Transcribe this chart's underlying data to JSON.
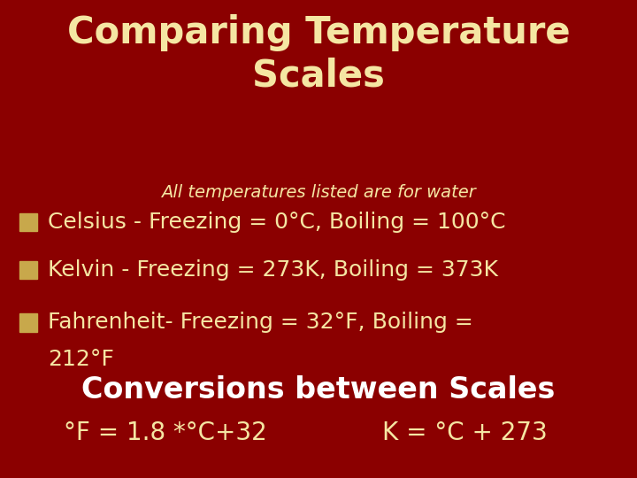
{
  "title_line1": "Comparing Temperature",
  "title_line2": "Scales",
  "subtitle": "All temperatures listed are for water",
  "bullet1": "Celsius - Freezing = 0°C, Boiling = 100°C",
  "bullet2": "Kelvin - Freezing = 273K, Boiling = 373K",
  "bullet3_line1": "Fahrenheit- Freezing = 32°F, Boiling =",
  "bullet3_line2": "212°F",
  "conversion_title": "Conversions between Scales",
  "conversion1": "°F = 1.8 *°C+32",
  "conversion2": "K = °C + 273",
  "bg_color": "#8B0000",
  "title_color": "#F5E6A3",
  "subtitle_color": "#F5E6A3",
  "bullet_color": "#F5E6A3",
  "bullet_square_color": "#C8A84B",
  "conversion_title_color": "#FFFFFF",
  "conversion_color": "#F5E6A3",
  "title_fontsize": 30,
  "subtitle_fontsize": 14,
  "bullet_fontsize": 18,
  "conversion_title_fontsize": 24,
  "conversion_fontsize": 20
}
